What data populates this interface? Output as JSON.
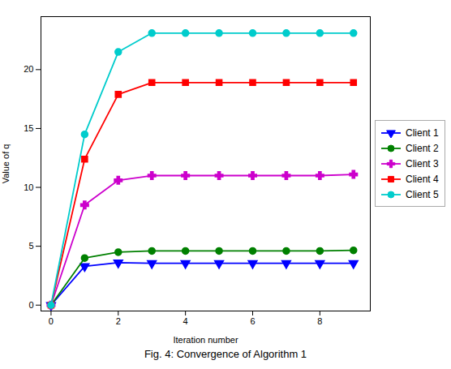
{
  "chart_data": {
    "type": "line",
    "xlabel": "Iteration number",
    "ylabel": "Value of q",
    "caption": "Fig. 4: Convergence of Algorithm 1",
    "x": [
      0,
      1,
      2,
      3,
      4,
      5,
      6,
      7,
      8,
      9
    ],
    "series": [
      {
        "name": "Client 1",
        "color": "#0000ff",
        "marker": "triangle_down",
        "values": [
          0,
          3.3,
          3.6,
          3.55,
          3.55,
          3.55,
          3.55,
          3.55,
          3.55,
          3.55
        ]
      },
      {
        "name": "Client 2",
        "color": "#008000",
        "marker": "circle",
        "values": [
          0,
          4.0,
          4.5,
          4.6,
          4.6,
          4.6,
          4.6,
          4.6,
          4.6,
          4.65
        ]
      },
      {
        "name": "Client 3",
        "color": "#cc00cc",
        "marker": "plus",
        "values": [
          0,
          8.5,
          10.6,
          11.0,
          11.0,
          11.0,
          11.0,
          11.0,
          11.0,
          11.1
        ]
      },
      {
        "name": "Client 4",
        "color": "#ff0000",
        "marker": "square",
        "values": [
          0,
          12.4,
          17.9,
          18.9,
          18.9,
          18.9,
          18.9,
          18.9,
          18.9,
          18.9
        ]
      },
      {
        "name": "Client 5",
        "color": "#00cccc",
        "marker": "circle",
        "values": [
          0,
          14.5,
          21.5,
          23.1,
          23.1,
          23.1,
          23.1,
          23.1,
          23.1,
          23.1
        ]
      }
    ],
    "xlim": [
      -0.3,
      9.5
    ],
    "ylim": [
      -0.5,
      24.5
    ],
    "xticks": [
      0,
      2,
      4,
      6,
      8
    ],
    "yticks": [
      0,
      5,
      10,
      15,
      20
    ],
    "grid": false,
    "legend": "right"
  }
}
